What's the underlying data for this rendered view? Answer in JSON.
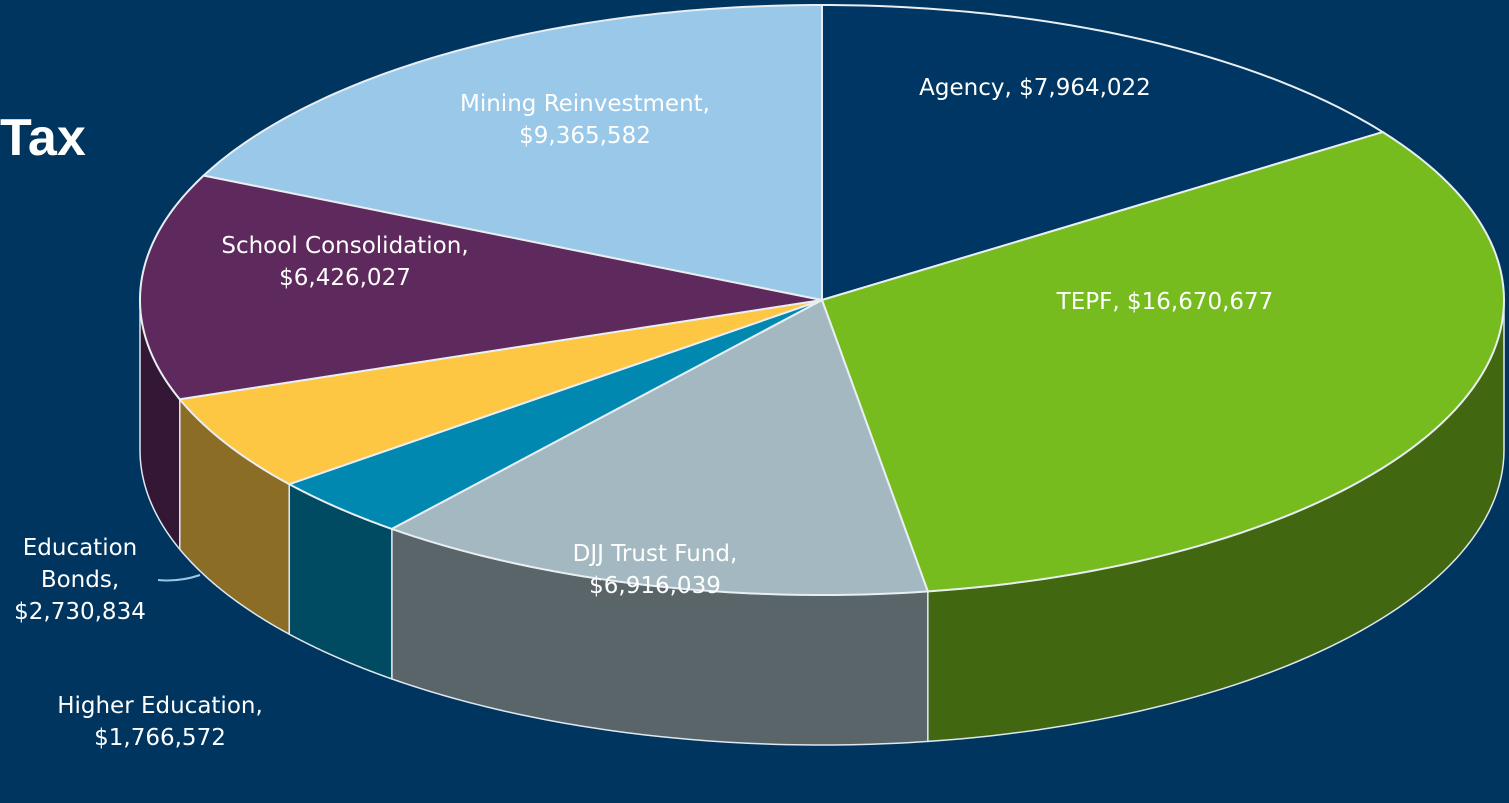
{
  "chart_data": {
    "type": "pie",
    "title": "Tax",
    "categories": [
      "Agency,",
      "TEPF,",
      "DJJ Trust Fund,",
      "Higher Education,",
      "Education Bonds,",
      "School Consolidation,",
      "Mining Reinvestment,"
    ],
    "values": [
      7964022,
      16670677,
      6916039,
      1766572,
      2730834,
      6426027,
      9365582
    ],
    "value_labels": [
      "$7,964,022",
      "$16,670,677",
      "$6,916,039",
      "$1,766,572",
      "$2,730,834",
      "$6,426,027",
      "$9,365,582"
    ],
    "colors": [
      "#003663",
      "#77bc1f",
      "#a3b8c0",
      "#0088b0",
      "#fdc743",
      "#5e2a5e",
      "#9ac8e8"
    ]
  }
}
